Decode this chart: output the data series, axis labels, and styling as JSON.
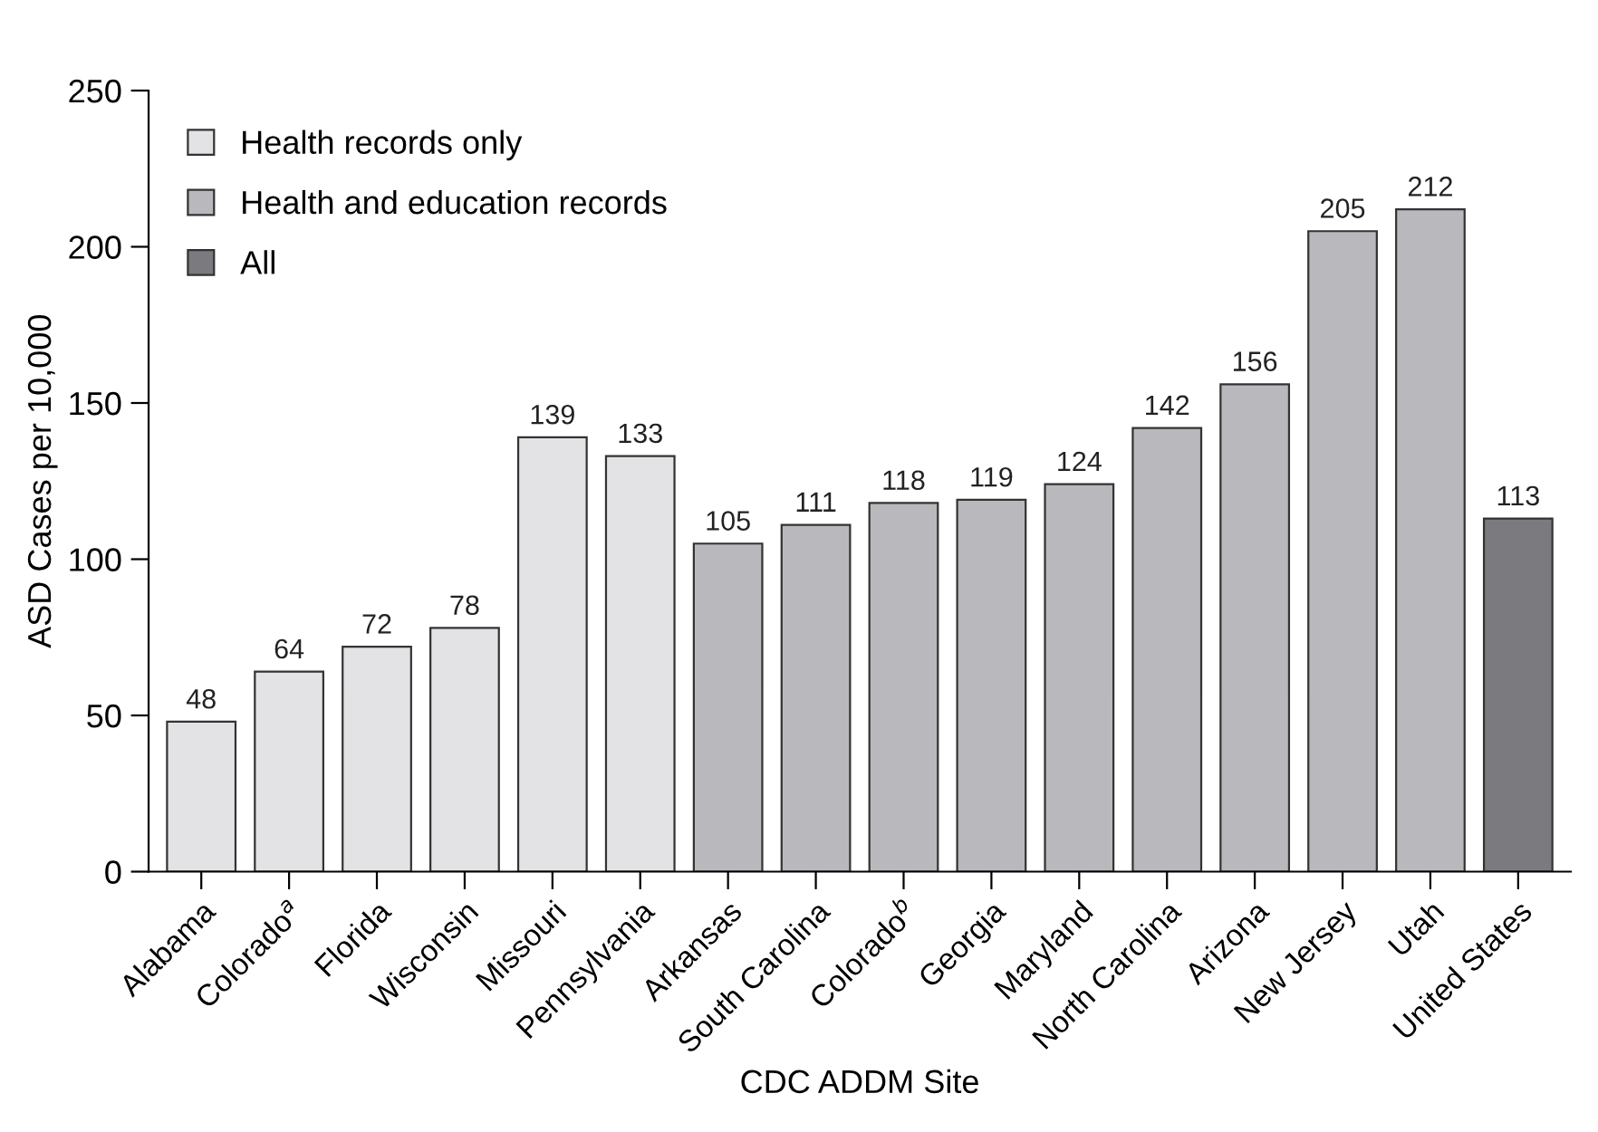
{
  "chart_data": {
    "type": "bar",
    "xlabel": "CDC ADDM Site",
    "ylabel": "ASD Cases per 10,000",
    "categories": [
      "Alabama",
      "Colorado$^{a}$",
      "Florida",
      "Wisconsin",
      "Missouri",
      "Pennsylvania",
      "Arkansas",
      "South Carolina",
      "Colorado$^{b}$",
      "Georgia",
      "Maryland",
      "North Carolina",
      "Arizona",
      "New Jersey",
      "Utah",
      "United States"
    ],
    "series": [
      {
        "name": "Health records only",
        "color": "#e3e3e5",
        "values": [
          48,
          64,
          72,
          78,
          139,
          133,
          null,
          null,
          null,
          null,
          null,
          null,
          null,
          null,
          null,
          null
        ]
      },
      {
        "name": "Health and education records",
        "color": "#b9b9bd",
        "values": [
          null,
          null,
          null,
          null,
          null,
          null,
          105,
          111,
          118,
          119,
          124,
          142,
          156,
          205,
          212,
          null
        ]
      },
      {
        "name": "All",
        "color": "#7b7b7f",
        "values": [
          null,
          null,
          null,
          null,
          null,
          null,
          null,
          null,
          null,
          null,
          null,
          null,
          null,
          null,
          null,
          113
        ]
      }
    ],
    "ylim": [
      0,
      250
    ],
    "yticks": [
      0,
      50,
      100,
      150,
      200,
      250
    ],
    "data_labels": true,
    "legend": "top left",
    "grid": false
  }
}
